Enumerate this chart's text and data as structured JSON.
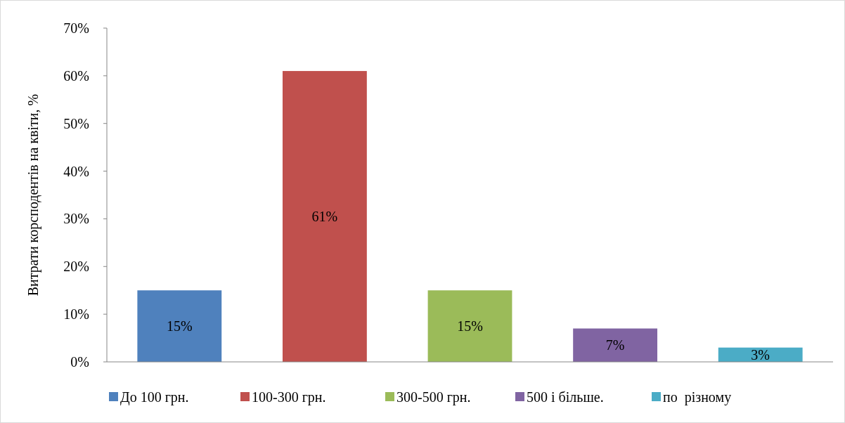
{
  "chart_data": {
    "type": "bar",
    "ylabel": "Витрати корсподентів на квіти, %",
    "categories": [
      null
    ],
    "series": [
      {
        "name": "До 100 грн.",
        "color": "#4f81bd",
        "values": [
          15
        ],
        "value_labels": [
          "15%"
        ]
      },
      {
        "name": "100-300 грн.",
        "color": "#c0504d",
        "values": [
          61
        ],
        "value_labels": [
          "61%"
        ]
      },
      {
        "name": "300-500 грн.",
        "color": "#9bbb59",
        "values": [
          15
        ],
        "value_labels": [
          "15%"
        ]
      },
      {
        "name": "500 і більше.",
        "color": "#8064a2",
        "values": [
          7
        ],
        "value_labels": [
          "7%"
        ]
      },
      {
        "name": "по  різному",
        "color": "#4bacc6",
        "values": [
          3
        ],
        "value_labels": [
          "3%"
        ]
      }
    ],
    "ylim": [
      0,
      70
    ],
    "yticks": [
      {
        "value": 0,
        "label": "0%"
      },
      {
        "value": 10,
        "label": "10%"
      },
      {
        "value": 20,
        "label": "20%"
      },
      {
        "value": 30,
        "label": "30%"
      },
      {
        "value": 40,
        "label": "40%"
      },
      {
        "value": 50,
        "label": "50%"
      },
      {
        "value": 60,
        "label": "60%"
      },
      {
        "value": 70,
        "label": "70%"
      }
    ],
    "grid": false,
    "legend": "bottom"
  }
}
